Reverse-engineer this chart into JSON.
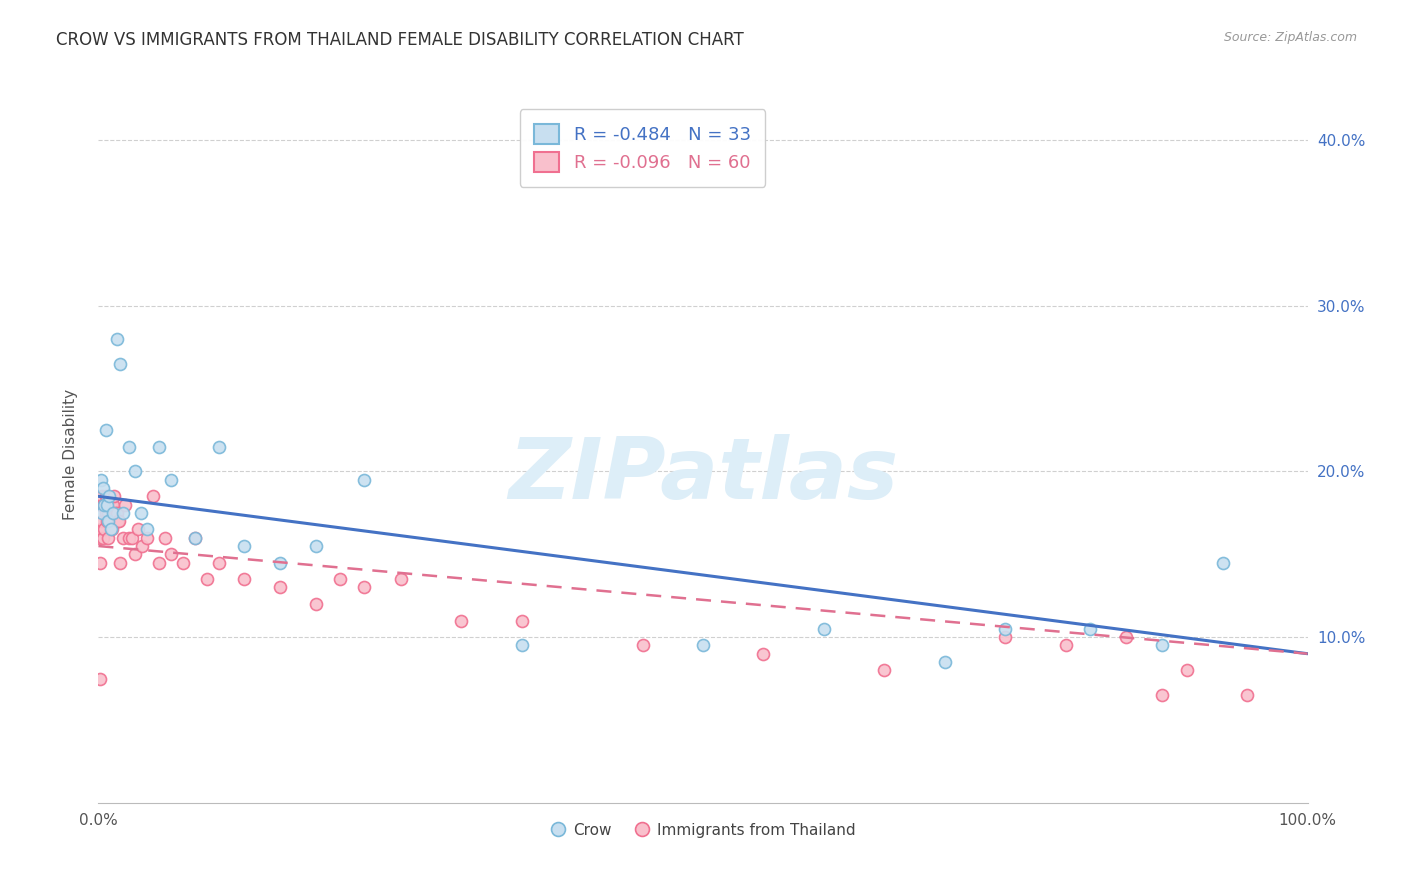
{
  "title": "CROW VS IMMIGRANTS FROM THAILAND FEMALE DISABILITY CORRELATION CHART",
  "source": "Source: ZipAtlas.com",
  "ylabel": "Female Disability",
  "legend_crow": "R = -0.484   N = 33",
  "legend_thai": "R = -0.096   N = 60",
  "crow_color": "#7ab8d9",
  "crow_fill": "#c8dff0",
  "thai_color": "#f07090",
  "thai_fill": "#f9c0cc",
  "blue_line_color": "#4472c4",
  "pink_line_color": "#e07090",
  "watermark_color": "#ddeef8",
  "crow_points_x": [
    0.002,
    0.003,
    0.004,
    0.005,
    0.006,
    0.007,
    0.008,
    0.009,
    0.01,
    0.012,
    0.015,
    0.018,
    0.02,
    0.025,
    0.03,
    0.035,
    0.04,
    0.05,
    0.06,
    0.08,
    0.1,
    0.12,
    0.15,
    0.18,
    0.22,
    0.35,
    0.5,
    0.6,
    0.7,
    0.75,
    0.82,
    0.88,
    0.93
  ],
  "crow_points_y": [
    0.195,
    0.175,
    0.19,
    0.18,
    0.225,
    0.18,
    0.17,
    0.185,
    0.165,
    0.175,
    0.28,
    0.265,
    0.175,
    0.215,
    0.2,
    0.175,
    0.165,
    0.215,
    0.195,
    0.16,
    0.215,
    0.155,
    0.145,
    0.155,
    0.195,
    0.095,
    0.095,
    0.105,
    0.085,
    0.105,
    0.105,
    0.095,
    0.145
  ],
  "thai_points_x": [
    0.001,
    0.001,
    0.001,
    0.002,
    0.002,
    0.003,
    0.003,
    0.004,
    0.004,
    0.005,
    0.005,
    0.006,
    0.006,
    0.007,
    0.007,
    0.008,
    0.008,
    0.009,
    0.01,
    0.011,
    0.012,
    0.013,
    0.014,
    0.015,
    0.016,
    0.017,
    0.018,
    0.02,
    0.022,
    0.025,
    0.028,
    0.03,
    0.033,
    0.036,
    0.04,
    0.045,
    0.05,
    0.055,
    0.06,
    0.07,
    0.08,
    0.09,
    0.1,
    0.12,
    0.15,
    0.18,
    0.2,
    0.22,
    0.25,
    0.3,
    0.35,
    0.45,
    0.55,
    0.65,
    0.75,
    0.8,
    0.85,
    0.88,
    0.9,
    0.95
  ],
  "thai_points_y": [
    0.16,
    0.145,
    0.075,
    0.18,
    0.165,
    0.185,
    0.17,
    0.18,
    0.16,
    0.18,
    0.165,
    0.185,
    0.175,
    0.18,
    0.17,
    0.175,
    0.16,
    0.17,
    0.18,
    0.165,
    0.18,
    0.185,
    0.175,
    0.175,
    0.17,
    0.17,
    0.145,
    0.16,
    0.18,
    0.16,
    0.16,
    0.15,
    0.165,
    0.155,
    0.16,
    0.185,
    0.145,
    0.16,
    0.15,
    0.145,
    0.16,
    0.135,
    0.145,
    0.135,
    0.13,
    0.12,
    0.135,
    0.13,
    0.135,
    0.11,
    0.11,
    0.095,
    0.09,
    0.08,
    0.1,
    0.095,
    0.1,
    0.065,
    0.08,
    0.065
  ],
  "xlim": [
    0.0,
    1.0
  ],
  "ylim": [
    0.0,
    0.42
  ],
  "yticks": [
    0.1,
    0.2,
    0.3,
    0.4
  ],
  "ytick_labels": [
    "10.0%",
    "20.0%",
    "30.0%",
    "40.0%"
  ],
  "xtick_labels_show": [
    "0.0%",
    "100.0%"
  ],
  "grid_color": "#d0d0d0",
  "background_color": "#ffffff",
  "title_fontsize": 12,
  "axis_label_color": "#4472c4",
  "marker_size": 75,
  "marker_linewidth": 1.2
}
